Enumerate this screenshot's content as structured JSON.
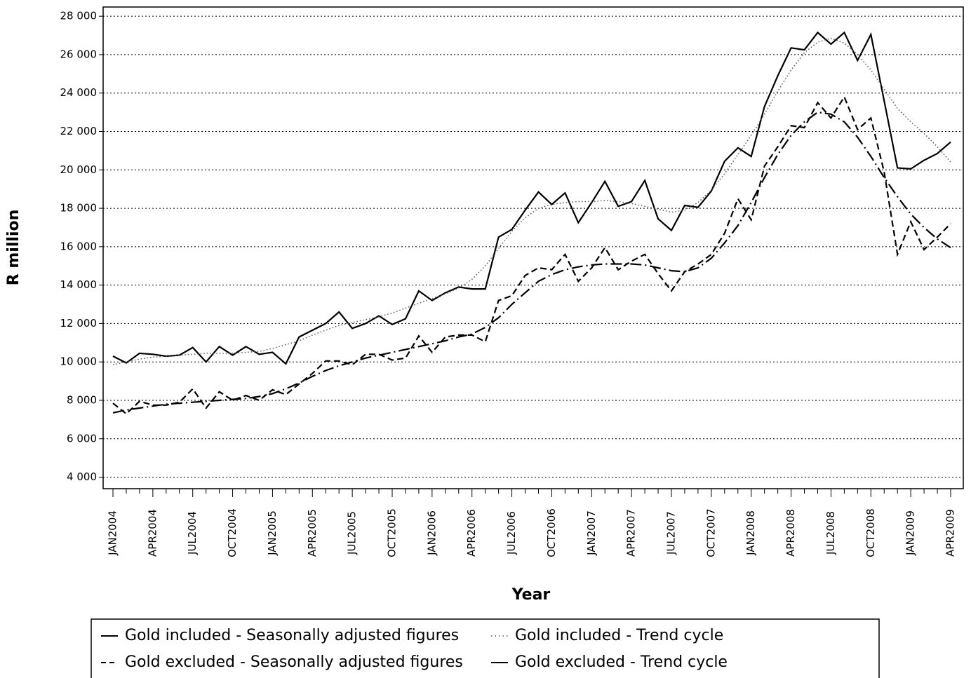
{
  "chart_data": {
    "type": "line",
    "y_label": "R million",
    "x_label": "Year",
    "categories": [
      "JAN2004",
      null,
      null,
      "APR2004",
      null,
      null,
      "JUL2004",
      null,
      null,
      "OCT2004",
      null,
      null,
      "JAN2005",
      null,
      null,
      "APR2005",
      null,
      null,
      "JUL2005",
      null,
      null,
      "OCT2005",
      null,
      null,
      "JAN2006",
      null,
      null,
      "APR2006",
      null,
      null,
      "JUL2006",
      null,
      null,
      "OCT2006",
      null,
      null,
      "JAN2007",
      null,
      null,
      "APR2007",
      null,
      null,
      "JUL2007",
      null,
      null,
      "OCT2007",
      null,
      null,
      "JAN2008",
      null,
      null,
      "APR2008",
      null,
      null,
      "JUL2008",
      null,
      null,
      "OCT2008",
      null,
      null,
      "JAN2009",
      null,
      null,
      "APR2009"
    ],
    "ylim": [
      3400,
      28480
    ],
    "yticks": [
      {
        "value": 4000,
        "label": "4 000"
      },
      {
        "value": 6000,
        "label": "6 000"
      },
      {
        "value": 8000,
        "label": "8 000"
      },
      {
        "value": 10000,
        "label": "10 000"
      },
      {
        "value": 12000,
        "label": "12 000"
      },
      {
        "value": 14000,
        "label": "14 000"
      },
      {
        "value": 16000,
        "label": "16 000"
      },
      {
        "value": 18000,
        "label": "18 000"
      },
      {
        "value": 20000,
        "label": "20 000"
      },
      {
        "value": 22000,
        "label": "22 000"
      },
      {
        "value": 24000,
        "label": "24 000"
      },
      {
        "value": 26000,
        "label": "26 000"
      },
      {
        "value": 28000,
        "label": "28 000"
      }
    ],
    "grid": true,
    "series": [
      {
        "name": "Gold included - Seasonally adjusted figures",
        "color": "#000000",
        "dash": "solid",
        "values": [
          10300,
          9950,
          10450,
          10400,
          10300,
          10350,
          10750,
          10000,
          10800,
          10350,
          10800,
          10400,
          10500,
          9900,
          11300,
          11650,
          12000,
          12600,
          11750,
          12000,
          12400,
          11950,
          12250,
          13700,
          13200,
          13600,
          13900,
          13800,
          13800,
          16500,
          16900,
          17900,
          18850,
          18200,
          18800,
          17250,
          18300,
          19400,
          18100,
          18350,
          19450,
          17450,
          16850,
          18150,
          18050,
          18900,
          20450,
          21150,
          20700,
          23300,
          24900,
          26350,
          26250,
          27150,
          26550,
          27150,
          25700,
          27050,
          23600,
          20100,
          20050,
          20500,
          20850,
          21450
        ]
      },
      {
        "name": "Gold included - Trend cycle",
        "color": "#555555",
        "dash": "dotted",
        "values": [
          9850,
          10000,
          10150,
          10250,
          10300,
          10350,
          10400,
          10450,
          10450,
          10450,
          10500,
          10550,
          10700,
          10900,
          11100,
          11400,
          11650,
          11900,
          12050,
          12200,
          12350,
          12550,
          12800,
          13050,
          13300,
          13550,
          13850,
          14300,
          15000,
          15900,
          16800,
          17500,
          18000,
          18200,
          18300,
          18350,
          18350,
          18400,
          18350,
          18250,
          18100,
          17950,
          17800,
          17900,
          18300,
          18950,
          19800,
          20800,
          21800,
          22900,
          24100,
          25200,
          26100,
          26650,
          26850,
          26600,
          26000,
          25200,
          24200,
          23200,
          22500,
          21900,
          21200,
          20400
        ]
      },
      {
        "name": "Gold excluded - Seasonally adjusted figures",
        "color": "#000000",
        "dash": "dashed",
        "values": [
          7850,
          7300,
          7950,
          7750,
          7750,
          7900,
          8600,
          7600,
          8450,
          8000,
          8250,
          8000,
          8550,
          8300,
          8850,
          9400,
          10050,
          10050,
          9850,
          10400,
          10400,
          10100,
          10200,
          11350,
          10500,
          11300,
          11400,
          11400,
          11050,
          13200,
          13450,
          14500,
          14900,
          14800,
          15600,
          14200,
          14900,
          15950,
          14800,
          15250,
          15600,
          14600,
          13700,
          14700,
          15100,
          15600,
          16700,
          18500,
          17400,
          20200,
          21200,
          22300,
          22200,
          23500,
          22700,
          23800,
          22100,
          22700,
          19900,
          15600,
          17300,
          15850,
          16500,
          17200
        ]
      },
      {
        "name": "Gold excluded - Trend cycle",
        "color": "#000000",
        "dash": "dashdot",
        "values": [
          7350,
          7500,
          7600,
          7700,
          7800,
          7850,
          7900,
          7950,
          8000,
          8050,
          8100,
          8200,
          8350,
          8600,
          8900,
          9250,
          9550,
          9800,
          10000,
          10200,
          10350,
          10500,
          10650,
          10800,
          10950,
          11100,
          11300,
          11450,
          11800,
          12300,
          13000,
          13600,
          14200,
          14550,
          14800,
          14950,
          15050,
          15100,
          15100,
          15100,
          15050,
          14900,
          14750,
          14700,
          14900,
          15400,
          16200,
          17100,
          18300,
          19600,
          20800,
          21800,
          22500,
          23000,
          22900,
          22500,
          21700,
          20700,
          19600,
          18600,
          17700,
          17000,
          16400,
          15950
        ]
      }
    ]
  }
}
